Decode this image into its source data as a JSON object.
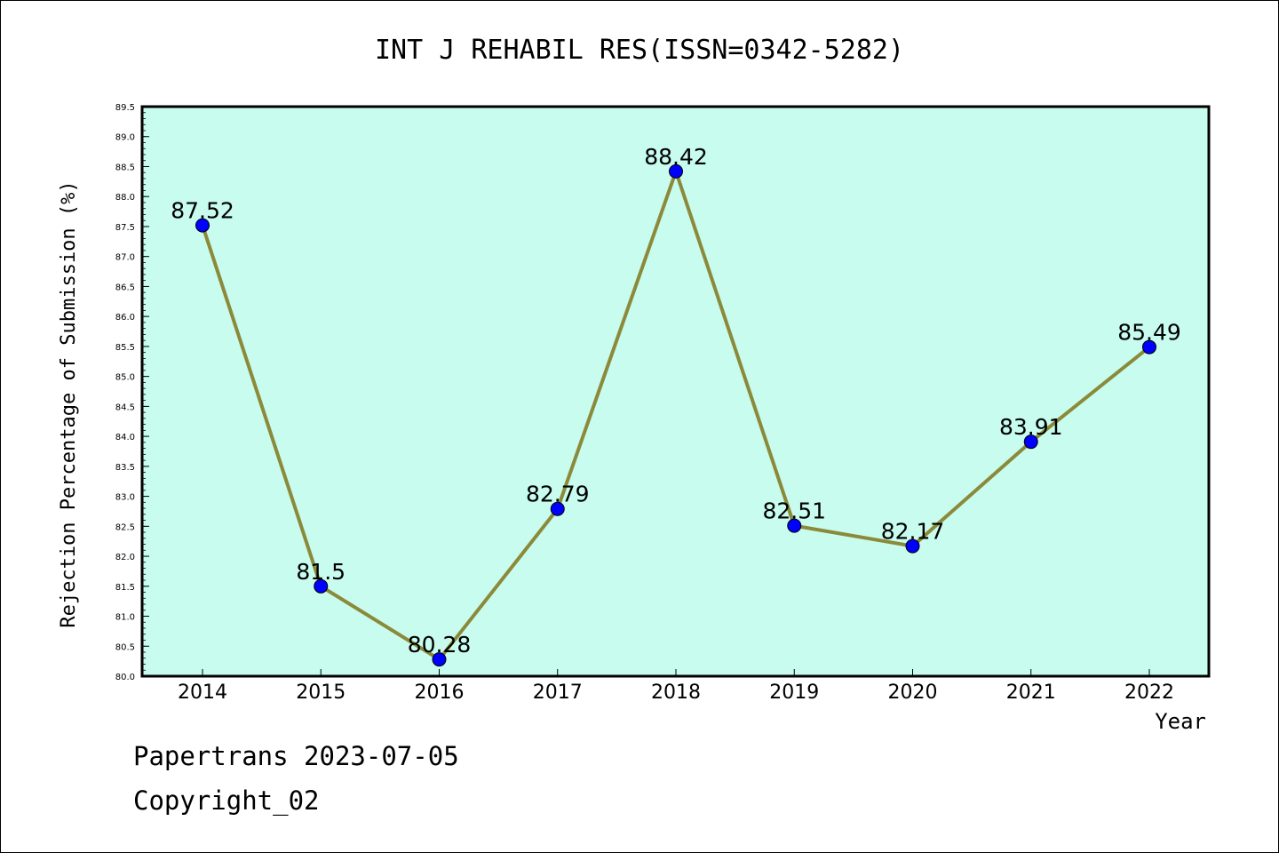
{
  "chart_data": {
    "type": "line",
    "title": "INT J REHABIL RES(ISSN=0342-5282)",
    "xlabel": "Year",
    "ylabel": "Rejection Percentage of Submission (%)",
    "categories": [
      "2014",
      "2015",
      "2016",
      "2017",
      "2018",
      "2019",
      "2020",
      "2021",
      "2022"
    ],
    "values": [
      87.52,
      81.5,
      80.28,
      82.79,
      88.42,
      82.51,
      82.17,
      83.91,
      85.49
    ],
    "data_labels": [
      "87.52",
      "81.5",
      "80.28",
      "82.79",
      "88.42",
      "82.51",
      "82.17",
      "83.91",
      "85.49"
    ],
    "ylim": [
      80.0,
      89.5
    ],
    "yticks": [
      "80.0",
      "80.5",
      "81.0",
      "81.5",
      "82.0",
      "82.5",
      "83.0",
      "83.5",
      "84.0",
      "84.5",
      "85.0",
      "85.5",
      "86.0",
      "86.5",
      "87.0",
      "87.5",
      "88.0",
      "88.5",
      "89.0",
      "89.5"
    ],
    "grid": false,
    "colors": {
      "plot_background": "#c8fcee",
      "line": "#8b8a3a",
      "marker": "#0000ff"
    }
  },
  "footer": {
    "line1": "Papertrans 2023-07-05",
    "line2": "Copyright_02"
  }
}
